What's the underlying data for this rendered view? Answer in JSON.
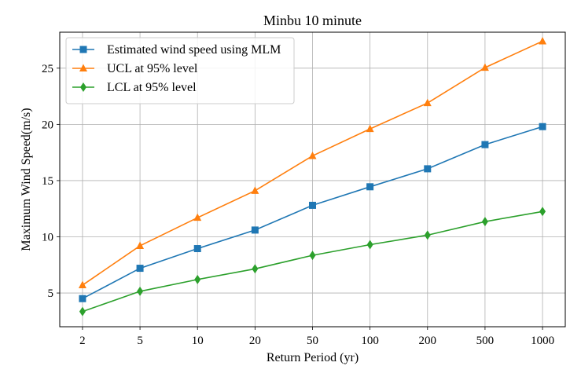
{
  "chart_data": {
    "type": "line",
    "title": "Minbu 10 minute",
    "xlabel": "Return Period (yr)",
    "ylabel": "Maximum Wind Speed(m/s)",
    "categories": [
      "2",
      "5",
      "10",
      "20",
      "50",
      "100",
      "200",
      "500",
      "1000"
    ],
    "yticks": [
      "5",
      "10",
      "15",
      "20",
      "25"
    ],
    "ylim": [
      2.0,
      28.2
    ],
    "grid": true,
    "legend_position": "top-left",
    "series": [
      {
        "name": "Estimated wind speed using MLM",
        "color": "#1f77b4",
        "marker": "square",
        "values": [
          4.5,
          7.2,
          8.95,
          10.6,
          12.8,
          14.45,
          16.05,
          18.2,
          19.8
        ]
      },
      {
        "name": "UCL at 95% level",
        "color": "#ff7f0e",
        "marker": "triangle",
        "values": [
          5.7,
          9.2,
          11.7,
          14.1,
          17.2,
          19.6,
          21.9,
          25.05,
          27.4
        ]
      },
      {
        "name": "LCL at 95% level",
        "color": "#2ca02c",
        "marker": "diamond",
        "values": [
          3.35,
          5.15,
          6.2,
          7.15,
          8.35,
          9.3,
          10.15,
          11.35,
          12.25
        ]
      }
    ]
  }
}
